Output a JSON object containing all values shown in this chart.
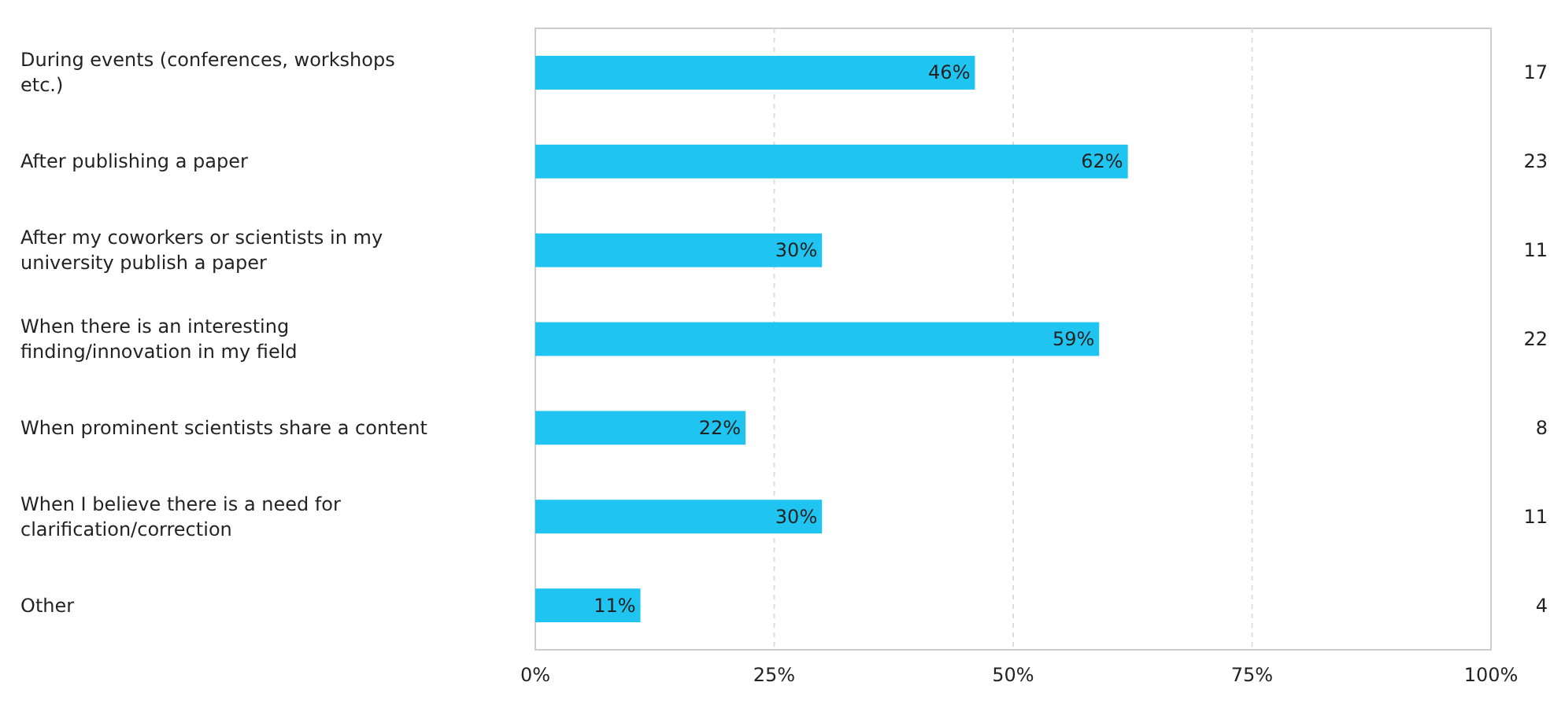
{
  "chart_data": {
    "type": "bar",
    "orientation": "horizontal",
    "categories": [
      "During events (conferences, workshops etc.)",
      "After publishing a paper",
      "After my coworkers or scientists in my university publish a paper",
      "When there is an interesting finding/innovation in my field",
      "When prominent scientists share a content",
      "When I believe there is a need for clarification/correction",
      "Other"
    ],
    "values": [
      46,
      62,
      30,
      59,
      22,
      30,
      11
    ],
    "value_labels": [
      "46%",
      "62%",
      "30%",
      "59%",
      "22%",
      "30%",
      "11%"
    ],
    "color": "#1fc4f0",
    "xlim": [
      0,
      100
    ],
    "xticks": [
      {
        "value": 0,
        "label": "0%"
      },
      {
        "value": 25,
        "label": "25%"
      },
      {
        "value": 50,
        "label": "50%"
      },
      {
        "value": 75,
        "label": "75%"
      },
      {
        "value": 100,
        "label": "100%"
      }
    ],
    "grid": "x",
    "annotations": [
      "17",
      "23",
      "11",
      "22",
      "8",
      "11",
      "4"
    ]
  }
}
